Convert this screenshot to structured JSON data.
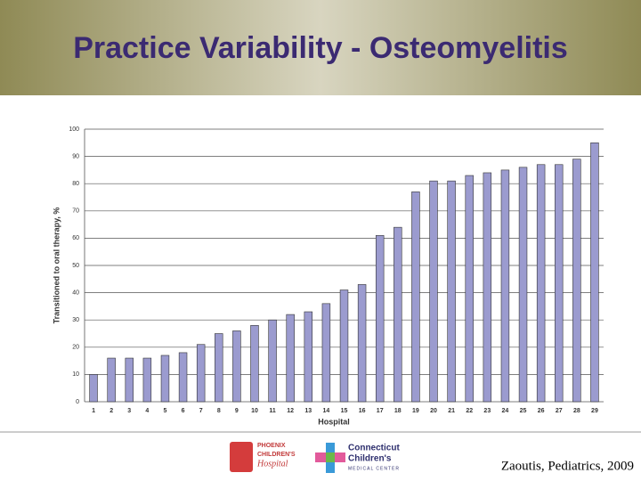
{
  "title": "Practice Variability - Osteomyelitis",
  "chart_data": {
    "type": "bar",
    "categories": [
      "1",
      "2",
      "3",
      "4",
      "5",
      "6",
      "7",
      "8",
      "9",
      "10",
      "11",
      "12",
      "13",
      "14",
      "15",
      "16",
      "17",
      "18",
      "19",
      "20",
      "21",
      "22",
      "23",
      "24",
      "25",
      "26",
      "27",
      "28",
      "29"
    ],
    "values": [
      10,
      16,
      16,
      16,
      17,
      18,
      21,
      25,
      26,
      28,
      30,
      32,
      33,
      36,
      41,
      43,
      61,
      64,
      77,
      81,
      81,
      83,
      84,
      85,
      86,
      87,
      87,
      89,
      95
    ],
    "color": "#9b9bcf",
    "x_label": "Hospital",
    "y_label": "Transitioned to oral therapy, %",
    "ylim": [
      0,
      100
    ],
    "yticks": [
      0,
      10,
      20,
      30,
      40,
      50,
      60,
      70,
      80,
      90,
      100
    ],
    "grid": true
  },
  "footer": {
    "logo_left": [
      "PHOENIX",
      "CHILDREN'S",
      "Hospital"
    ],
    "logo_right": [
      "Connecticut",
      "Children's",
      "MEDICAL CENTER"
    ],
    "citation": "Zaoutis, Pediatrics, 2009"
  }
}
